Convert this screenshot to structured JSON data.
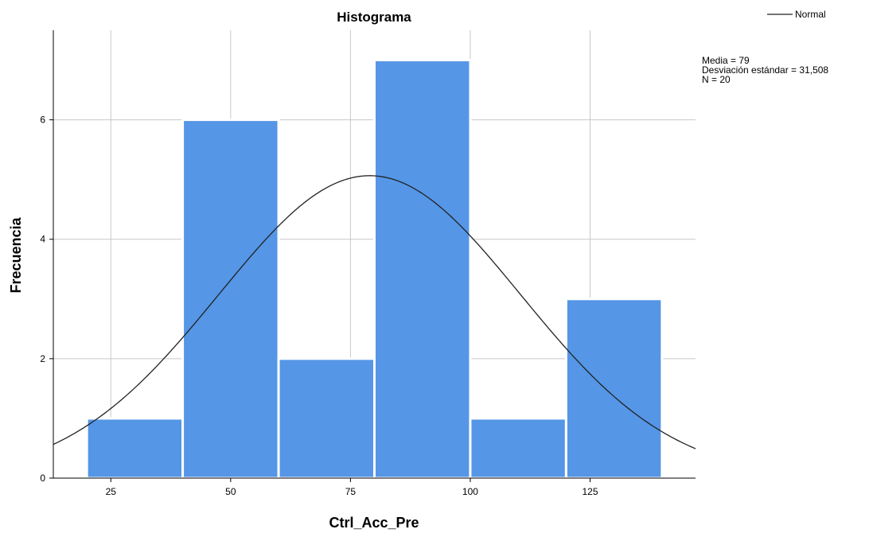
{
  "chart_data": {
    "type": "bar",
    "title": "Histograma",
    "xlabel": "Ctrl_Acc_Pre",
    "ylabel": "Frecuencia",
    "bins": [
      {
        "start": 20,
        "end": 40,
        "count": 1
      },
      {
        "start": 40,
        "end": 60,
        "count": 6
      },
      {
        "start": 60,
        "end": 80,
        "count": 2
      },
      {
        "start": 80,
        "end": 100,
        "count": 7
      },
      {
        "start": 100,
        "end": 120,
        "count": 1
      },
      {
        "start": 120,
        "end": 140,
        "count": 3
      }
    ],
    "xlim": [
      13,
      147
    ],
    "ylim": [
      0,
      7.5
    ],
    "x_ticks": [
      25,
      50,
      75,
      100,
      125
    ],
    "y_ticks": [
      0,
      2,
      4,
      6
    ],
    "grid": true,
    "bar_color": "#5596e6",
    "bar_edge_color": "#ffffff",
    "curve_color": "#222222",
    "normal_curve": {
      "mean": 79,
      "sd": 31.508,
      "n": 20,
      "bin_width": 20
    },
    "legend": {
      "position": "top-right",
      "entries": [
        "Normal"
      ]
    },
    "stats": [
      "Media = 79",
      "Desviación estándar = 31,508",
      "N = 20"
    ]
  }
}
